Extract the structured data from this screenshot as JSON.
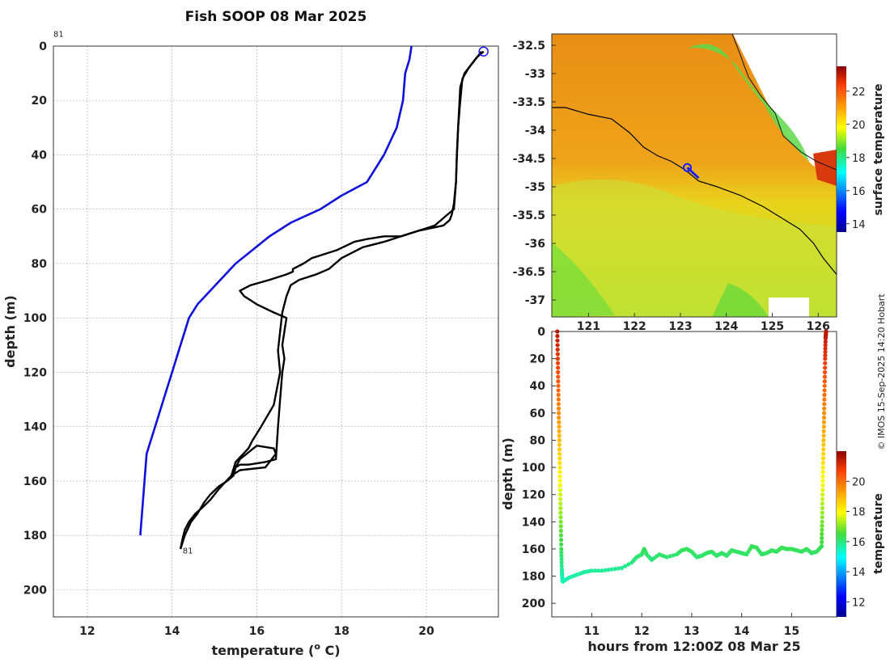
{
  "colors": {
    "reference_profile": "#1010dd",
    "measured_profile": "#000000",
    "track": "#000000",
    "marker": "#1a1aff"
  },
  "credit": "© IMOS 15-Sep-2025 14:20 Hobart",
  "chart_data": [
    {
      "id": "profile",
      "type": "line",
      "title": "Fish SOOP 08 Mar 2025",
      "xlabel": "temperature (",
      "xlabel_sup": "o",
      "xlabel_end": " C)",
      "ylabel": "depth (m)",
      "xlim": [
        11.2,
        21.7
      ],
      "ylim": [
        0,
        210
      ],
      "xticks": [
        12,
        14,
        16,
        18,
        20
      ],
      "yticks": [
        0,
        20,
        40,
        60,
        80,
        100,
        120,
        140,
        160,
        180,
        200
      ],
      "annotations": [
        {
          "text": "81",
          "x": 11.2,
          "y": -4
        },
        {
          "text": "81",
          "x": 14.25,
          "y": 186
        }
      ],
      "series": [
        {
          "name": "reference",
          "color": "#1010dd",
          "x": [
            19.65,
            19.6,
            19.5,
            19.45,
            19.3,
            19.0,
            18.6,
            18.0,
            17.5,
            16.8,
            16.3,
            15.9,
            15.5,
            15.2,
            14.9,
            14.6,
            14.4,
            14.2,
            14.0,
            13.8,
            13.6,
            13.4,
            13.35,
            13.3,
            13.25
          ],
          "y": [
            0,
            5,
            10,
            20,
            30,
            40,
            50,
            55,
            60,
            65,
            70,
            75,
            80,
            85,
            90,
            95,
            100,
            110,
            120,
            130,
            140,
            150,
            160,
            170,
            180
          ]
        },
        {
          "name": "profile-down",
          "color": "#000000",
          "x": [
            21.35,
            21.2,
            21.0,
            20.85,
            20.8,
            20.75,
            20.72,
            20.7,
            20.65,
            20.6,
            20.55,
            20.4,
            19.8,
            19.0,
            18.5,
            18.0,
            17.7,
            17.4,
            17.0,
            16.8,
            16.7,
            16.6,
            16.55,
            16.5,
            16.55,
            16.4,
            16.1,
            15.9,
            15.8,
            15.5,
            15.4,
            15.6,
            16.2,
            16.45,
            16.4,
            16.0,
            15.6,
            15.4,
            15.1,
            14.9,
            14.7,
            14.55,
            14.4,
            14.3,
            14.25,
            14.2
          ],
          "y": [
            2,
            4,
            8,
            12,
            20,
            30,
            40,
            50,
            58,
            62,
            64,
            66,
            68,
            72,
            74,
            78,
            82,
            84,
            86,
            88,
            92,
            98,
            105,
            112,
            120,
            132,
            140,
            145,
            148,
            153,
            158,
            156,
            155,
            150,
            148,
            147,
            152,
            158,
            163,
            167,
            170,
            172,
            175,
            178,
            181,
            185
          ]
        },
        {
          "name": "profile-up",
          "color": "#000000",
          "x": [
            14.2,
            14.3,
            14.45,
            14.6,
            14.75,
            14.9,
            15.1,
            15.3,
            15.45,
            15.5,
            15.6,
            15.8,
            16.2,
            16.45,
            16.5,
            16.55,
            16.6,
            16.65,
            16.6,
            16.7,
            16.4,
            16.0,
            15.7,
            15.6,
            15.85,
            16.3,
            16.7,
            16.85,
            16.85,
            17.1,
            17.3,
            17.5,
            17.9,
            18.3,
            18.6,
            19.0,
            19.4,
            19.8,
            20.2,
            20.5,
            20.65,
            20.7,
            20.72,
            20.75,
            20.8,
            20.9,
            21.1,
            21.3
          ],
          "y": [
            185,
            180,
            175,
            172,
            168,
            165,
            162,
            160,
            158,
            155,
            154,
            154,
            153,
            152,
            140,
            130,
            120,
            115,
            110,
            100,
            98,
            95,
            92,
            90,
            88,
            86,
            84,
            83,
            82,
            80,
            78,
            77,
            75,
            72,
            71,
            70,
            70,
            68,
            66,
            62,
            60,
            50,
            40,
            30,
            15,
            10,
            6,
            2
          ]
        }
      ]
    },
    {
      "id": "map",
      "type": "heatmap",
      "colorbar_label": "surface temperature",
      "xlim": [
        120.2,
        126.4
      ],
      "ylim": [
        -37.3,
        -32.3
      ],
      "xticks": [
        121,
        122,
        123,
        124,
        125,
        126
      ],
      "yticks": [
        -32.5,
        -33,
        -33.5,
        -34,
        -34.5,
        -35,
        -35.5,
        -36,
        -36.5,
        -37
      ],
      "ytick_labels": [
        "-32.5",
        "-33",
        "-33.5",
        "-34",
        "-34.5",
        "-35",
        "-35.5",
        "-36",
        "-36.5",
        "-37"
      ],
      "colorbar_range": [
        13.5,
        23.5
      ],
      "colorbar_ticks": [
        14,
        16,
        18,
        20,
        22
      ],
      "track": {
        "lon": [
          120.2,
          120.5,
          121.0,
          121.5,
          121.9,
          122.2,
          122.5,
          122.8,
          123.1,
          123.4,
          123.8,
          124.3,
          124.8,
          125.2,
          125.6,
          125.9,
          126.1,
          126.3,
          126.4
        ],
        "lat": [
          -33.6,
          -33.6,
          -33.72,
          -33.8,
          -34.05,
          -34.3,
          -34.45,
          -34.55,
          -34.7,
          -34.9,
          -35.0,
          -35.15,
          -35.35,
          -35.55,
          -35.75,
          -36.0,
          -36.25,
          -36.45,
          -36.55
        ]
      },
      "position": {
        "lon": 123.15,
        "lat": -34.66
      }
    },
    {
      "id": "section",
      "type": "scatter",
      "xlabel": "hours from 12:00Z 08 Mar 25",
      "ylabel": "depth (m)",
      "colorbar_label": "temperature",
      "xlim": [
        10.2,
        15.9
      ],
      "ylim": [
        0,
        210
      ],
      "xticks": [
        11,
        12,
        13,
        14,
        15
      ],
      "yticks": [
        0,
        20,
        40,
        60,
        80,
        100,
        120,
        140,
        160,
        180,
        200
      ],
      "colorbar_range": [
        11,
        22
      ],
      "colorbar_ticks": [
        12,
        14,
        16,
        18,
        20
      ],
      "down_cast": {
        "x": [
          10.31,
          10.32,
          10.33,
          10.34,
          10.35,
          10.36,
          10.37,
          10.38,
          10.39,
          10.4,
          10.41,
          10.42
        ],
        "y": [
          0,
          20,
          40,
          60,
          80,
          100,
          120,
          140,
          160,
          175,
          182,
          184
        ]
      },
      "bottom": {
        "x": [
          10.42,
          10.55,
          10.7,
          10.85,
          11.0,
          11.2,
          11.4,
          11.6,
          11.8,
          11.9,
          12.0,
          12.05,
          12.1,
          12.2,
          12.35,
          12.5,
          12.7,
          12.8,
          12.9,
          13.0,
          13.1,
          13.2,
          13.3,
          13.4,
          13.5,
          13.6,
          13.7,
          13.8,
          13.9,
          14.0,
          14.1,
          14.2,
          14.3,
          14.4,
          14.5,
          14.6,
          14.7,
          14.8,
          14.9,
          15.0,
          15.1,
          15.2,
          15.3,
          15.4,
          15.5,
          15.6
        ],
        "y": [
          184,
          181,
          179,
          177,
          176,
          176,
          175,
          174,
          170,
          166,
          164,
          160,
          164,
          168,
          164,
          166,
          164,
          161,
          160,
          162,
          166,
          165,
          163,
          162,
          165,
          163,
          165,
          161,
          162,
          163,
          164,
          158,
          159,
          164,
          163,
          161,
          162,
          159,
          160,
          160,
          161,
          162,
          160,
          163,
          162,
          158
        ]
      },
      "up_cast": {
        "x": [
          15.6,
          15.61,
          15.62,
          15.63,
          15.64,
          15.65,
          15.66,
          15.67,
          15.68,
          15.69
        ],
        "y": [
          158,
          140,
          120,
          100,
          80,
          60,
          40,
          20,
          5,
          0
        ]
      }
    }
  ]
}
